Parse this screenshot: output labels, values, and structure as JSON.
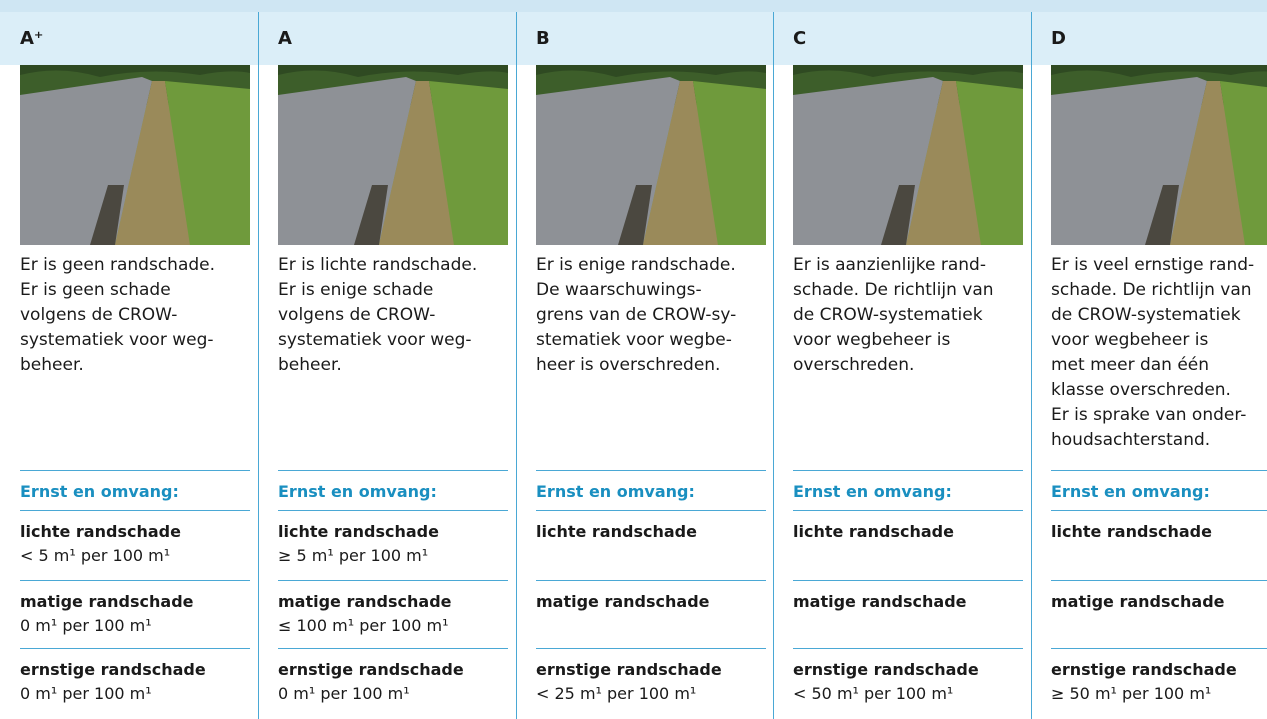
{
  "columns": [
    {
      "grade": "A⁺",
      "description": [
        "Er is geen randschade.",
        "Er is geen schade",
        "volgens de CROW-",
        "systematiek voor weg-",
        "beheer."
      ],
      "section_title": "Ernst en omvang:",
      "criteria": [
        {
          "label": "lichte randschade",
          "value": "< 5 m¹ per 100 m¹"
        },
        {
          "label": "matige randschade",
          "value": "0 m¹ per 100 m¹"
        },
        {
          "label": "ernstige randschade",
          "value": "0 m¹ per 100 m¹"
        }
      ]
    },
    {
      "grade": "A",
      "description": [
        "Er is lichte randschade.",
        "Er is enige schade",
        "volgens de CROW-",
        "systematiek voor weg-",
        "beheer."
      ],
      "section_title": "Ernst en omvang:",
      "criteria": [
        {
          "label": "lichte randschade",
          "value": "≥ 5 m¹ per 100 m¹"
        },
        {
          "label": "matige randschade",
          "value": "≤ 100 m¹ per 100 m¹"
        },
        {
          "label": "ernstige randschade",
          "value": "0 m¹ per 100 m¹"
        }
      ]
    },
    {
      "grade": "B",
      "description": [
        "Er is enige randschade.",
        "De waarschuwings-",
        "grens van de CROW-sy-",
        "stematiek voor wegbe-",
        "heer is overschreden."
      ],
      "section_title": "Ernst en omvang:",
      "criteria": [
        {
          "label": "lichte randschade"
        },
        {
          "label": "matige randschade"
        },
        {
          "label": "ernstige randschade",
          "value": "< 25 m¹ per 100 m¹"
        }
      ]
    },
    {
      "grade": "C",
      "description": [
        "Er is aanzienlijke rand-",
        "schade. De richtlijn van",
        "de CROW-systematiek",
        "voor wegbeheer is",
        "overschreden."
      ],
      "section_title": "Ernst en omvang:",
      "criteria": [
        {
          "label": "lichte randschade"
        },
        {
          "label": "matige randschade"
        },
        {
          "label": "ernstige randschade",
          "value": "< 50 m¹ per 100 m¹"
        }
      ]
    },
    {
      "grade": "D",
      "description": [
        "Er is veel ernstige rand-",
        "schade. De richtlijn van",
        "de CROW-systematiek",
        "voor wegbeheer is",
        "met meer dan één",
        "klasse overschreden.",
        "Er is sprake van onder-",
        "houdsachterstand."
      ],
      "section_title": "Ernst en omvang:",
      "criteria": [
        {
          "label": "lichte randschade"
        },
        {
          "label": "matige randschade"
        },
        {
          "label": "ernstige randschade",
          "value": "≥ 50 m¹ per 100 m¹"
        }
      ]
    }
  ]
}
